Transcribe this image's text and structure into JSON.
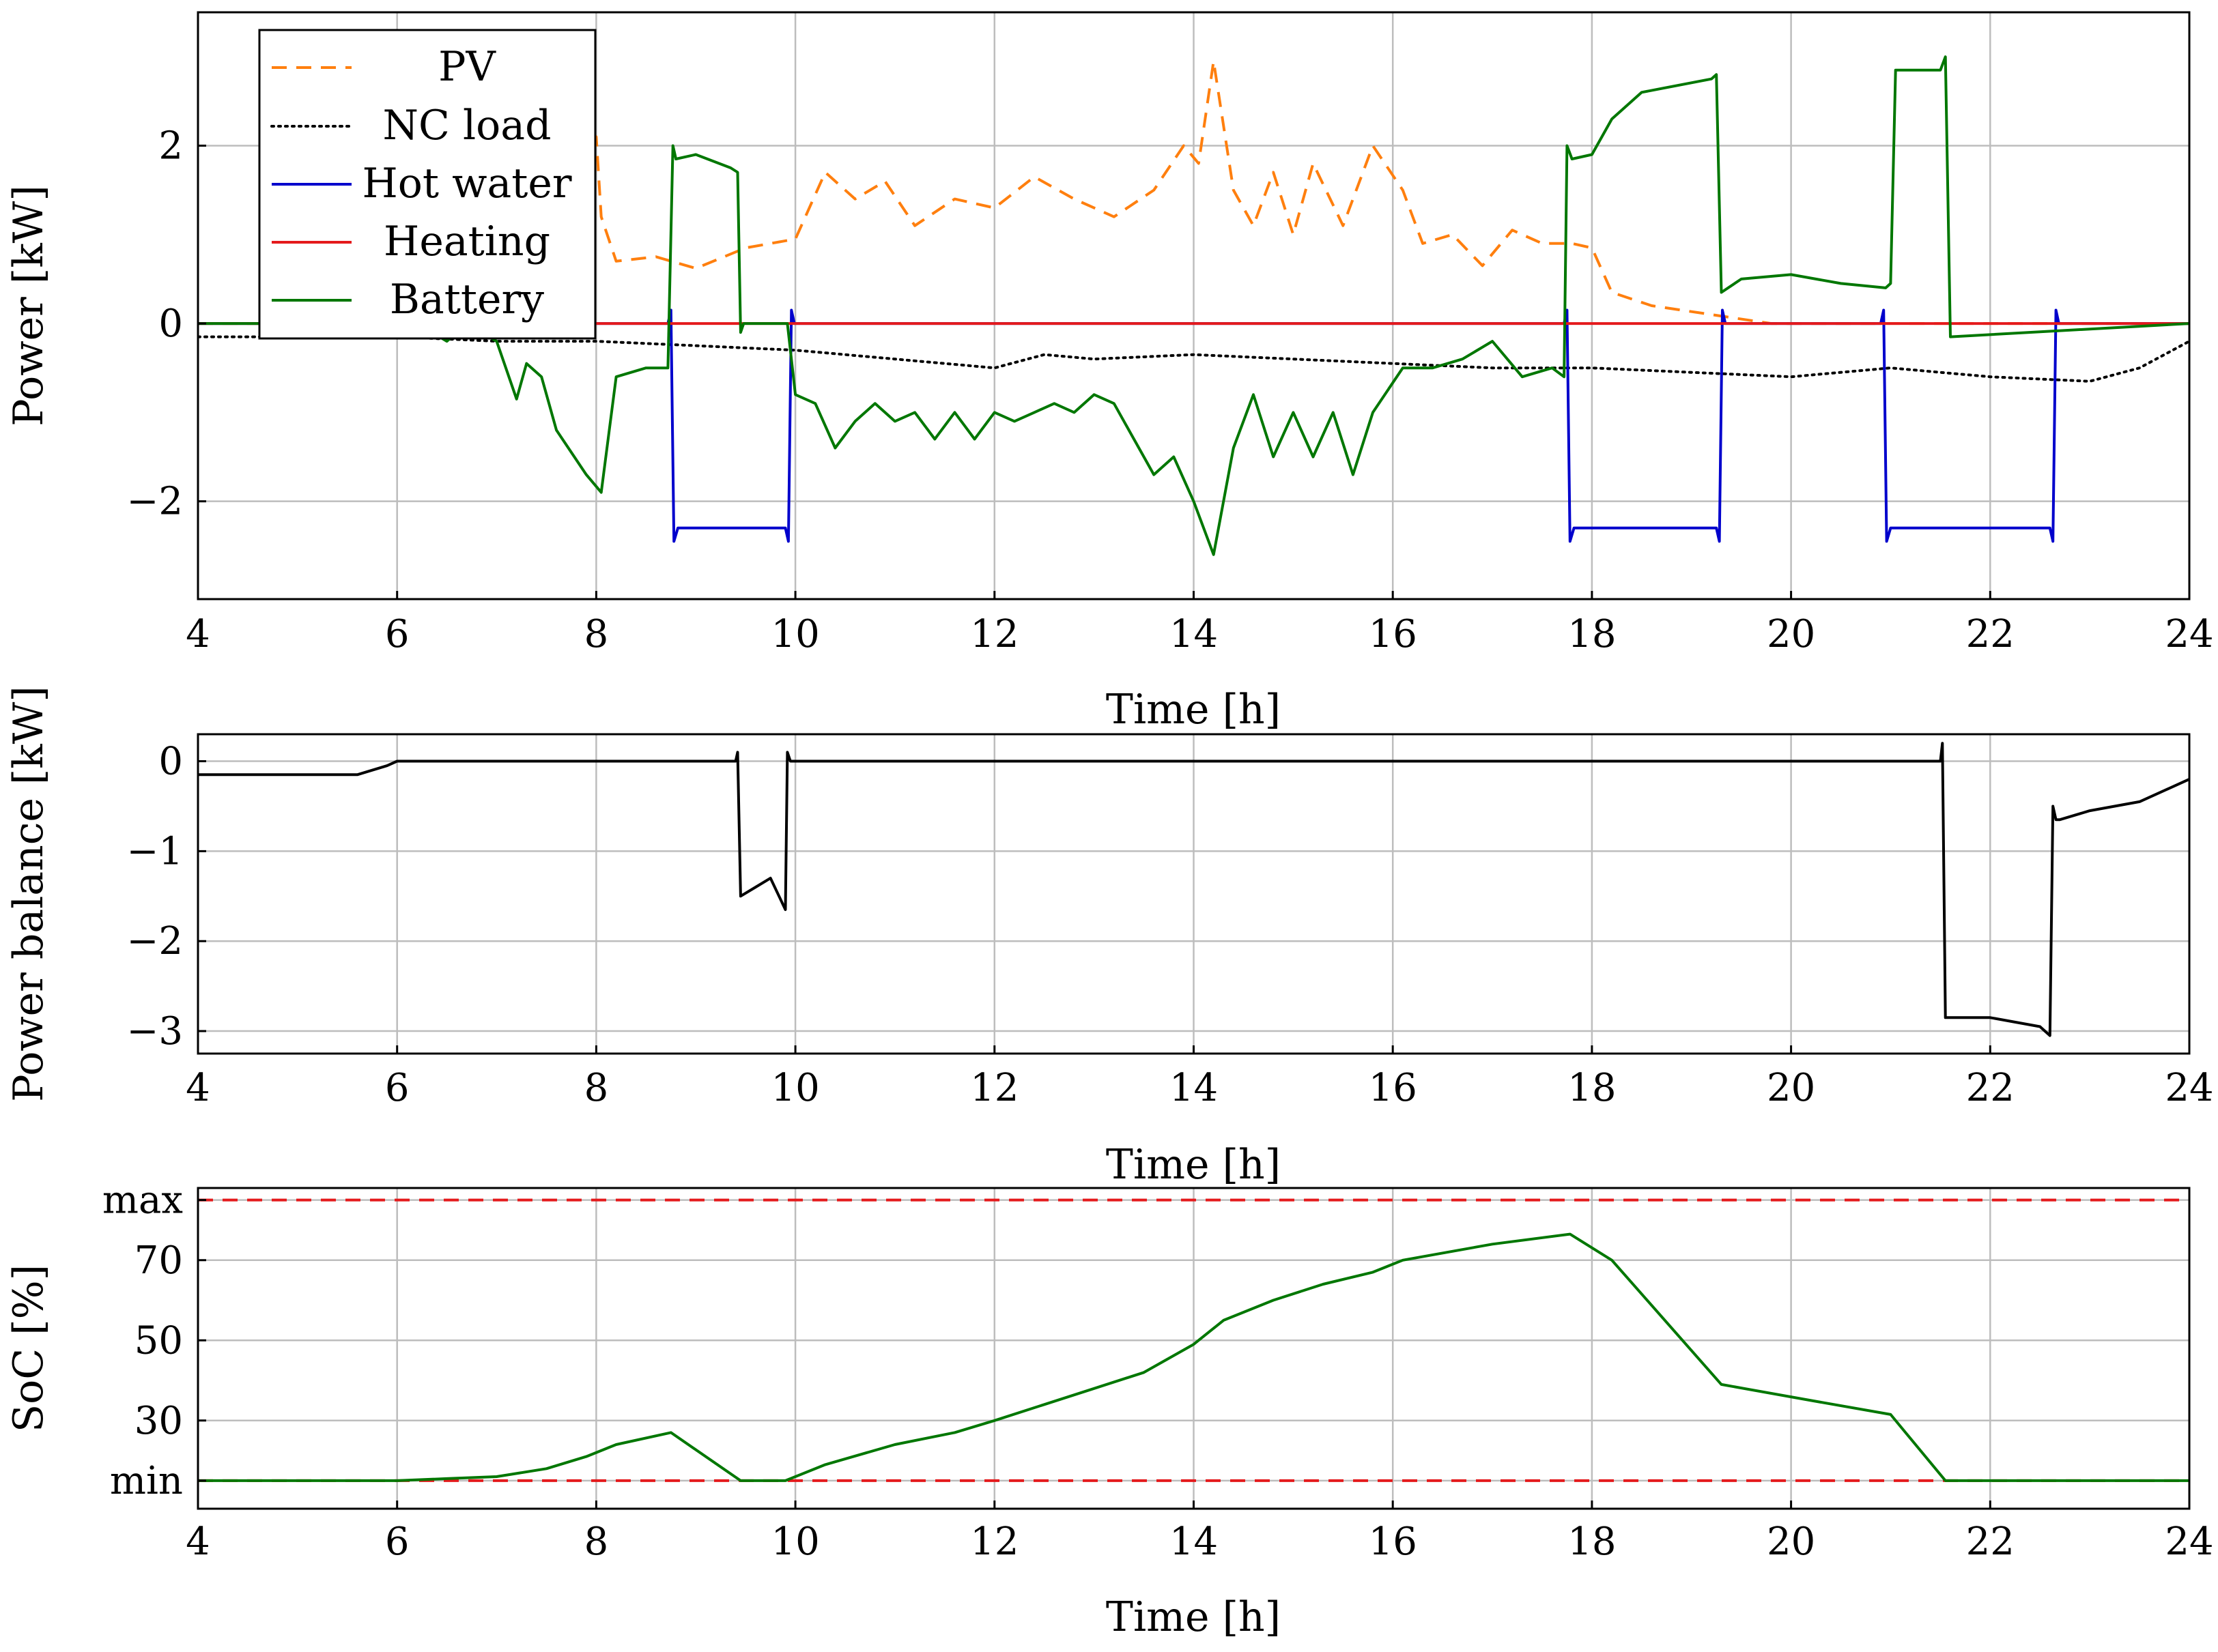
{
  "colors": {
    "pv": "#ff7f0e",
    "nc_load": "#000000",
    "hot_water": "#0000cc",
    "heating": "#e41a1c",
    "battery": "#007700",
    "balance": "#000000",
    "limits": "#e41a1c"
  },
  "chart_data": [
    {
      "type": "line",
      "id": "power",
      "xlabel": "Time [h]",
      "ylabel": "Power [kW]",
      "xlim": [
        4,
        24
      ],
      "ylim": [
        -3.1,
        3.5
      ],
      "xticks": [
        4,
        6,
        8,
        10,
        12,
        14,
        16,
        18,
        20,
        22,
        24
      ],
      "yticks": [
        -2,
        0,
        2
      ],
      "ytick_labels": [
        "−2",
        "0",
        "2"
      ],
      "legend_position": "top-left",
      "series": [
        {
          "name": "PV",
          "color_key": "pv",
          "style": "dashed",
          "x": [
            4,
            6,
            7.5,
            8,
            8.05,
            8.2,
            8.6,
            9.0,
            9.5,
            10,
            10.3,
            10.6,
            10.9,
            11.2,
            11.6,
            12.0,
            12.4,
            12.8,
            13.2,
            13.6,
            13.9,
            14.05,
            14.2,
            14.4,
            14.6,
            14.8,
            15.0,
            15.2,
            15.5,
            15.8,
            16.1,
            16.3,
            16.6,
            16.9,
            17.2,
            17.5,
            17.8,
            18.0,
            18.2,
            18.6,
            19.2,
            19.8,
            20.2,
            21,
            24
          ],
          "y": [
            0,
            0,
            1.6,
            2.1,
            1.2,
            0.7,
            0.75,
            0.62,
            0.85,
            0.95,
            1.7,
            1.4,
            1.6,
            1.1,
            1.4,
            1.3,
            1.65,
            1.4,
            1.2,
            1.5,
            2.0,
            1.8,
            2.95,
            1.5,
            1.1,
            1.7,
            1.0,
            1.8,
            1.1,
            2.0,
            1.5,
            0.9,
            1.0,
            0.65,
            1.05,
            0.9,
            0.9,
            0.85,
            0.35,
            0.2,
            0.1,
            0.0,
            0.0,
            0,
            0
          ]
        },
        {
          "name": "NC load",
          "color_key": "nc_load",
          "style": "dotted",
          "x": [
            4,
            5,
            6,
            7,
            8,
            9,
            10,
            11,
            12,
            12.5,
            13,
            14,
            15,
            16,
            17,
            18,
            19,
            20,
            21,
            22,
            23,
            23.5,
            24
          ],
          "y": [
            -0.15,
            -0.15,
            -0.15,
            -0.2,
            -0.2,
            -0.25,
            -0.3,
            -0.4,
            -0.5,
            -0.35,
            -0.4,
            -0.35,
            -0.4,
            -0.45,
            -0.5,
            -0.5,
            -0.55,
            -0.6,
            -0.5,
            -0.6,
            -0.65,
            -0.5,
            -0.2
          ]
        },
        {
          "name": "Hot water",
          "color_key": "hot_water",
          "style": "solid",
          "x": [
            4,
            8.72,
            8.75,
            8.78,
            8.82,
            9.9,
            9.93,
            9.96,
            9.99,
            17.72,
            17.75,
            17.78,
            17.82,
            19.25,
            19.28,
            19.31,
            19.34,
            20.9,
            20.93,
            20.96,
            21.0,
            22.6,
            22.63,
            22.66,
            22.69,
            24
          ],
          "y": [
            0,
            0,
            0.15,
            -2.45,
            -2.3,
            -2.3,
            -2.45,
            0.15,
            0,
            0,
            0.15,
            -2.45,
            -2.3,
            -2.3,
            -2.45,
            0.15,
            0,
            0,
            0.15,
            -2.45,
            -2.3,
            -2.3,
            -2.45,
            0.15,
            0,
            0
          ]
        },
        {
          "name": "Heating",
          "color_key": "heating",
          "style": "solid",
          "x": [
            4,
            24
          ],
          "y": [
            0,
            0
          ]
        },
        {
          "name": "Battery",
          "color_key": "battery",
          "style": "solid",
          "x": [
            4,
            6.2,
            6.5,
            6.7,
            7.0,
            7.2,
            7.3,
            7.45,
            7.6,
            7.9,
            8.05,
            8.2,
            8.5,
            8.72,
            8.77,
            8.8,
            9.0,
            9.35,
            9.42,
            9.45,
            9.48,
            9.8,
            9.92,
            10.0,
            10.2,
            10.4,
            10.6,
            10.8,
            11.0,
            11.2,
            11.4,
            11.6,
            11.8,
            12.0,
            12.2,
            12.4,
            12.6,
            12.8,
            13.0,
            13.2,
            13.4,
            13.6,
            13.8,
            14.0,
            14.2,
            14.4,
            14.6,
            14.8,
            15.0,
            15.2,
            15.4,
            15.6,
            15.8,
            16.1,
            16.4,
            16.7,
            17.0,
            17.3,
            17.6,
            17.72,
            17.75,
            17.8,
            18.0,
            18.2,
            18.5,
            19.2,
            19.25,
            19.3,
            19.5,
            20.0,
            20.5,
            20.95,
            21.0,
            21.05,
            21.5,
            21.55,
            21.6,
            24
          ],
          "y": [
            0,
            0,
            -0.2,
            0,
            -0.2,
            -0.85,
            -0.45,
            -0.6,
            -1.2,
            -1.7,
            -1.9,
            -0.6,
            -0.5,
            -0.5,
            2.0,
            1.85,
            1.9,
            1.75,
            1.7,
            -0.1,
            0,
            0,
            0,
            -0.8,
            -0.9,
            -1.4,
            -1.1,
            -0.9,
            -1.1,
            -1.0,
            -1.3,
            -1.0,
            -1.3,
            -1.0,
            -1.1,
            -1.0,
            -0.9,
            -1.0,
            -0.8,
            -0.9,
            -1.3,
            -1.7,
            -1.5,
            -2.0,
            -2.6,
            -1.4,
            -0.8,
            -1.5,
            -1.0,
            -1.5,
            -1.0,
            -1.7,
            -1.0,
            -0.5,
            -0.5,
            -0.4,
            -0.2,
            -0.6,
            -0.5,
            -0.6,
            2.0,
            1.85,
            1.9,
            2.3,
            2.6,
            2.75,
            2.8,
            0.35,
            0.5,
            0.55,
            0.45,
            0.4,
            0.45,
            2.85,
            2.85,
            3.0,
            -0.15,
            0
          ]
        }
      ]
    },
    {
      "type": "line",
      "id": "balance",
      "xlabel": "Time [h]",
      "ylabel": "Power balance [kW]",
      "xlim": [
        4,
        24
      ],
      "ylim": [
        -3.25,
        0.3
      ],
      "xticks": [
        4,
        6,
        8,
        10,
        12,
        14,
        16,
        18,
        20,
        22,
        24
      ],
      "yticks": [
        -3,
        -2,
        -1,
        0
      ],
      "ytick_labels": [
        "−3",
        "−2",
        "−1",
        "0"
      ],
      "series": [
        {
          "name": "Power balance",
          "color_key": "balance",
          "style": "solid",
          "x": [
            4,
            5.6,
            5.9,
            6.0,
            9.4,
            9.42,
            9.45,
            9.6,
            9.75,
            9.9,
            9.92,
            9.95,
            21.5,
            21.52,
            21.55,
            22.0,
            22.5,
            22.6,
            22.63,
            22.66,
            22.7,
            23.0,
            23.5,
            24
          ],
          "y": [
            -0.15,
            -0.15,
            -0.05,
            0,
            0,
            0.1,
            -1.5,
            -1.4,
            -1.3,
            -1.65,
            0.1,
            0,
            0,
            0.2,
            -2.85,
            -2.85,
            -2.95,
            -3.05,
            -0.5,
            -0.65,
            -0.65,
            -0.55,
            -0.45,
            -0.2
          ]
        }
      ]
    },
    {
      "type": "line",
      "id": "soc",
      "xlabel": "Time [h]",
      "ylabel": "SoC [%]",
      "xlim": [
        4,
        24
      ],
      "ylim": [
        8,
        88
      ],
      "xticks": [
        4,
        6,
        8,
        10,
        12,
        14,
        16,
        18,
        20,
        22,
        24
      ],
      "yticks": [
        15,
        30,
        50,
        70,
        85
      ],
      "ytick_labels": [
        "min",
        "30",
        "50",
        "70",
        "max"
      ],
      "min_level": 15,
      "max_level": 85,
      "series": [
        {
          "name": "SoC",
          "color_key": "battery",
          "style": "solid",
          "x": [
            4,
            6,
            6.5,
            7,
            7.5,
            7.9,
            8.2,
            8.75,
            9.45,
            9.9,
            10.3,
            11,
            11.6,
            12.0,
            12.5,
            13,
            13.5,
            14,
            14.3,
            14.8,
            15.3,
            15.8,
            16.1,
            17.0,
            17.78,
            18.2,
            19.3,
            20.2,
            21.0,
            21.55,
            22,
            24
          ],
          "y": [
            15,
            15,
            15.5,
            16,
            18,
            21,
            24,
            27,
            15,
            15,
            19,
            24,
            27,
            30,
            34,
            38,
            42,
            49,
            55,
            60,
            64,
            67,
            70,
            74,
            76.5,
            70,
            39,
            35,
            31.5,
            15,
            15,
            15
          ]
        }
      ]
    }
  ]
}
